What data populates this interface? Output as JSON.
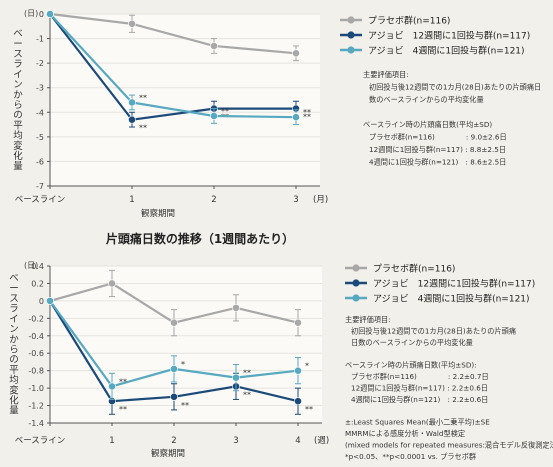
{
  "colors": {
    "placebo": "#a8a8a8",
    "monthly": "#1b4a7a",
    "quarterly": "#56a9c0",
    "grid": "#e6e4de"
  },
  "chart_data": [
    {
      "type": "line",
      "title": "",
      "y_unit": "(日)",
      "x_unit": "(月)",
      "xlabel": "観察期間",
      "ylabel": "ベースラインからの平均変化量",
      "categories": [
        "ベースライン",
        "1",
        "2",
        "3"
      ],
      "x": [
        0,
        1,
        2,
        3
      ],
      "ylim": [
        -7,
        0
      ],
      "yticks": [
        "0",
        "-1",
        "-2",
        "-3",
        "-4",
        "-5",
        "-6",
        "-7"
      ],
      "series": [
        {
          "name": "プラセボ群",
          "n": "(n=116)",
          "color": "#a8a8a8",
          "values": [
            0,
            -0.4,
            -1.3,
            -1.6
          ],
          "errors": [
            0,
            0.35,
            0.3,
            0.3
          ],
          "sig": [
            "",
            "",
            "",
            ""
          ]
        },
        {
          "name": "アジョビ　12週間に1回投与群",
          "n": "(n=117)",
          "color": "#1b4a7a",
          "values": [
            0,
            -4.3,
            -3.85,
            -3.85
          ],
          "errors": [
            0,
            0.3,
            0.3,
            0.3
          ],
          "sig": [
            "",
            "**",
            "**",
            "**"
          ]
        },
        {
          "name": "アジョビ　4週間に1回投与群",
          "n": "(n=121)",
          "color": "#56a9c0",
          "values": [
            0,
            -3.6,
            -4.15,
            -4.2
          ],
          "errors": [
            0,
            0.3,
            0.3,
            0.3
          ],
          "sig": [
            "",
            "**",
            "**",
            "**"
          ]
        }
      ],
      "notes": [
        "主要評価項目:",
        "初回投与後12週間での1カ月(28日)あたりの片頭痛日",
        "数のベースラインからの平均変化量",
        "",
        "ベースライン時の片頭痛日数(平均±SD)",
        "プラセボ群(n=116)　　　　 : 9.0±2.6日",
        "12週間に1回投与群(n=117) : 8.8±2.5日",
        "4週間に1回投与群(n=121)　: 8.6±2.5日"
      ]
    },
    {
      "type": "line",
      "title": "片頭痛日数の推移（1週間あたり）",
      "y_unit": "(日)",
      "x_unit": "(週)",
      "xlabel": "観察期間",
      "ylabel": "ベースラインからの平均変化量",
      "categories": [
        "ベースライン",
        "1",
        "2",
        "3",
        "4"
      ],
      "x": [
        0,
        1,
        2,
        3,
        4
      ],
      "ylim": [
        -1.4,
        0.4
      ],
      "yticks": [
        "0.4",
        "0.2",
        "0",
        "-0.2",
        "-0.4",
        "-0.6",
        "-0.8",
        "-1.0",
        "-1.2",
        "-1.4"
      ],
      "series": [
        {
          "name": "プラセボ群",
          "n": "(n=116)",
          "color": "#a8a8a8",
          "values": [
            0,
            0.2,
            -0.25,
            -0.08,
            -0.25
          ],
          "errors": [
            0,
            0.15,
            0.15,
            0.15,
            0.15
          ],
          "sig": [
            "",
            "",
            "",
            "",
            ""
          ]
        },
        {
          "name": "アジョビ　12週間に1回投与群",
          "n": "(n=117)",
          "color": "#1b4a7a",
          "values": [
            0,
            -1.15,
            -1.1,
            -0.98,
            -1.15
          ],
          "errors": [
            0,
            0.15,
            0.15,
            0.15,
            0.15
          ],
          "sig": [
            "",
            "**",
            "**",
            "**",
            "**"
          ]
        },
        {
          "name": "アジョビ　4週間に1回投与群",
          "n": "(n=121)",
          "color": "#56a9c0",
          "values": [
            0,
            -0.98,
            -0.78,
            -0.88,
            -0.8
          ],
          "errors": [
            0,
            0.15,
            0.15,
            0.15,
            0.15
          ],
          "sig": [
            "",
            "**",
            "*",
            "**",
            "*"
          ]
        }
      ],
      "notes": [
        "主要評価項目:",
        "初回投与後12週間での1カ月(28日)あたりの片頭痛",
        "日数のベースラインからの平均変化量",
        "",
        "ベースライン時の片頭痛日数(平均±SD):",
        "プラセボ群(n=116)　　　　 : 2.2±0.7日",
        "12週間に1回投与群(n=117) : 2.2±0.6日",
        "4週間に1回投与群(n=121)　: 2.2±0.6日",
        "",
        "±:Least Squares Mean(最小二乗平均)±SE",
        "MMRMによる感度分析・Wald型検定",
        "(mixed models for repeated measures:混合モデル反復測定法)",
        "*p<0.05、**p<0.0001 vs. プラセボ群"
      ]
    }
  ]
}
